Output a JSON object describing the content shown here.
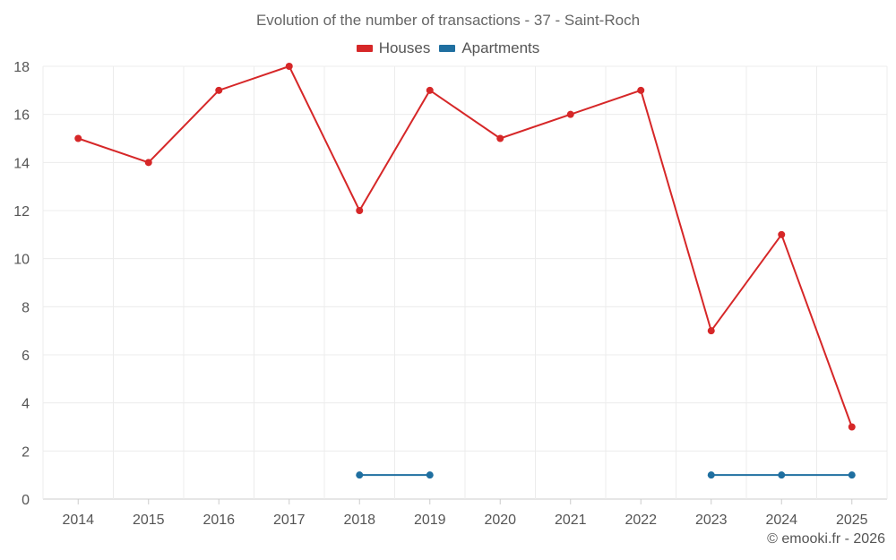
{
  "chart_data": {
    "type": "line",
    "title": "Evolution of the number of transactions - 37 - Saint-Roch",
    "categories": [
      "2014",
      "2015",
      "2016",
      "2017",
      "2018",
      "2019",
      "2020",
      "2021",
      "2022",
      "2023",
      "2024",
      "2025"
    ],
    "ylim": [
      0,
      18
    ],
    "yticks": [
      0,
      2,
      4,
      6,
      8,
      10,
      12,
      14,
      16,
      18
    ],
    "grid": true,
    "legend_position": "top-center",
    "series": [
      {
        "name": "Houses",
        "color": "#d62728",
        "values": [
          15,
          14,
          17,
          18,
          12,
          17,
          15,
          16,
          17,
          7,
          11,
          3
        ]
      },
      {
        "name": "Apartments",
        "color": "#1f6fa0",
        "values": [
          null,
          null,
          null,
          null,
          1,
          1,
          null,
          null,
          null,
          1,
          1,
          1
        ]
      }
    ]
  },
  "credit": "© emooki.fr - 2026"
}
